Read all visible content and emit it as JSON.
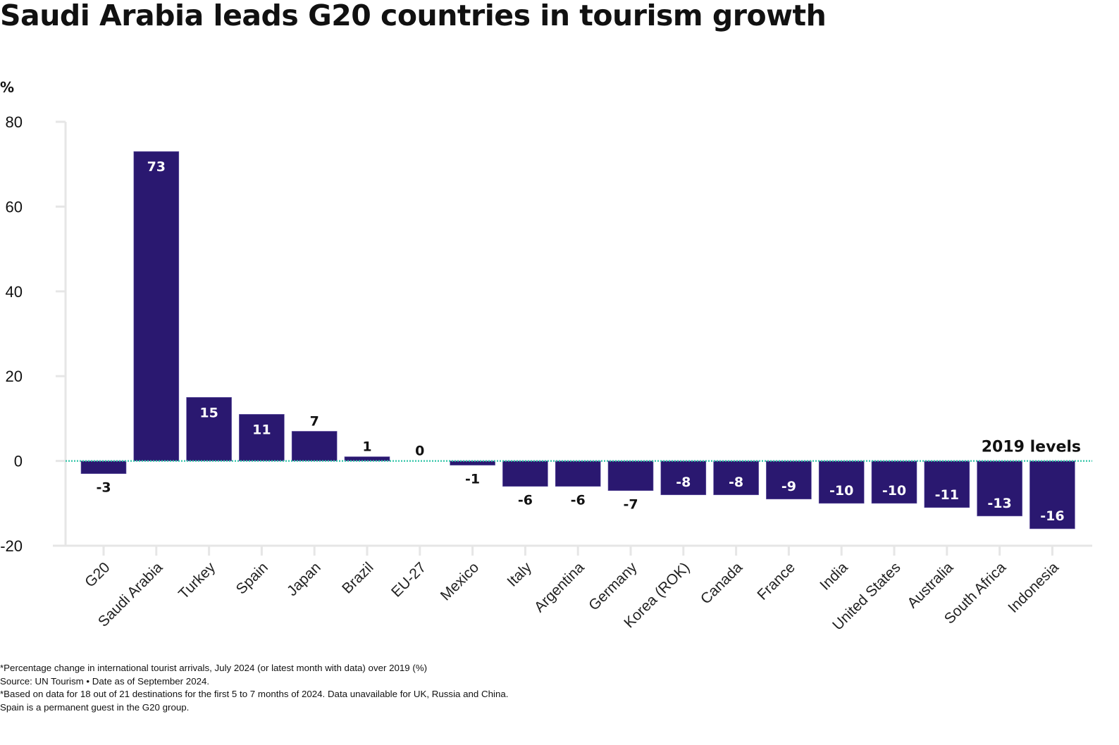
{
  "title": "Saudi Arabia leads G20 countries in tourism growth",
  "unit_label": "%",
  "chart_data": {
    "type": "bar",
    "title": "Saudi Arabia leads G20 countries in tourism growth",
    "xlabel": "",
    "ylabel": "%",
    "ylim": [
      -20,
      80
    ],
    "yticks": [
      80,
      60,
      40,
      20,
      0,
      -20
    ],
    "grid": false,
    "categories": [
      "G20",
      "Saudi Arabia",
      "Turkey",
      "Spain",
      "Japan",
      "Brazil",
      "EU-27",
      "Mexico",
      "Italy",
      "Argentina",
      "Germany",
      "Korea (ROK)",
      "Canada",
      "France",
      "India",
      "United States",
      "Australia",
      "South Africa",
      "Indonesia"
    ],
    "values": [
      -3,
      73,
      15,
      11,
      7,
      1,
      0,
      -1,
      -6,
      -6,
      -7,
      -8,
      -8,
      -9,
      -10,
      -10,
      -11,
      -13,
      -16
    ],
    "reference_line": {
      "value": 0,
      "label": "2019 levels",
      "style": "dotted"
    },
    "colors": {
      "bar": "#2a1870",
      "reference_line": "#2ec4a6",
      "axis": "#e6e6e6",
      "label_inside": "#ffffff",
      "label_outside": "#111111"
    }
  },
  "footnotes": [
    "*Percentage change in international tourist arrivals, July 2024 (or latest month with data) over 2019 (%)",
    "Source: UN Tourism • Date as of September 2024.",
    "*Based on data for 18 out of 21 destinations for the first 5 to 7 months of 2024. Data unavailable for UK, Russia and China.",
    "Spain is a permanent guest in the G20 group."
  ]
}
